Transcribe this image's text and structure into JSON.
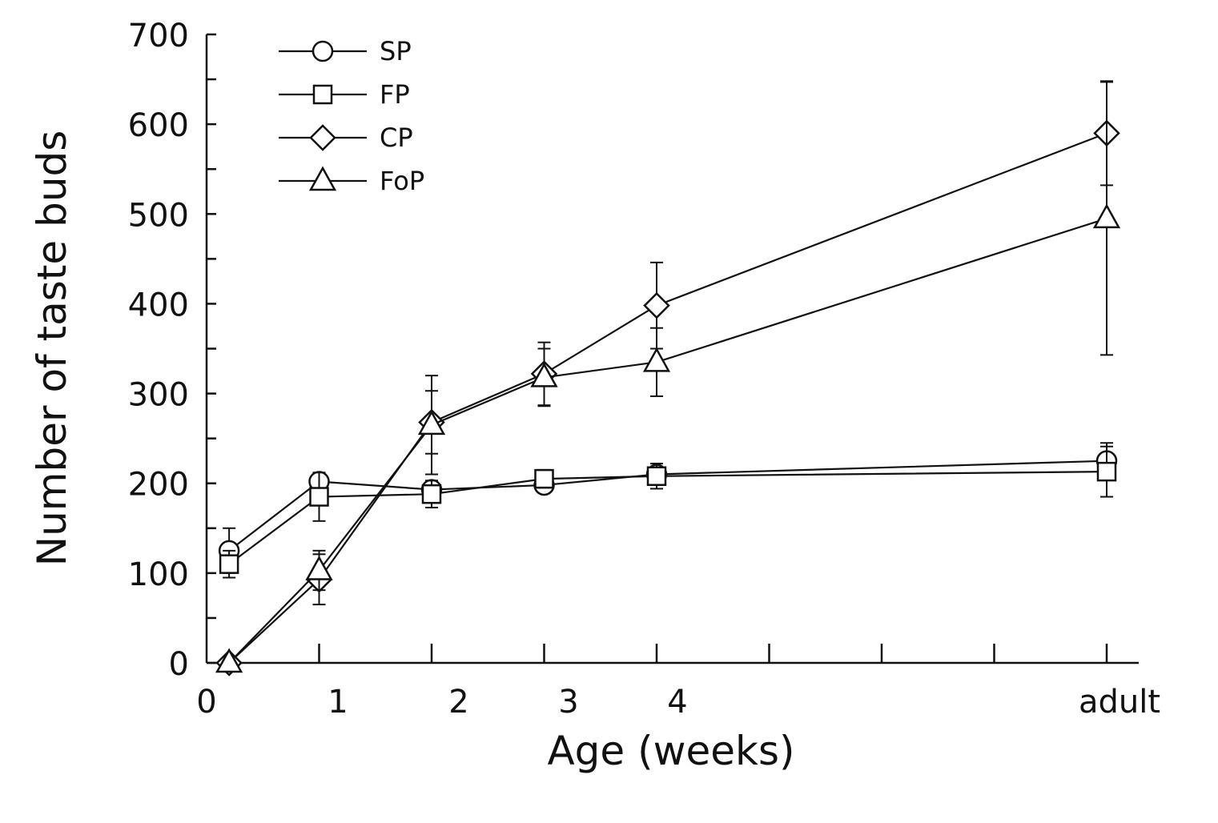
{
  "chart_data": {
    "type": "line",
    "title": "",
    "xlabel": "Age (weeks)",
    "ylabel": "Number of taste buds",
    "ylim": [
      0,
      700
    ],
    "yticks": [
      0,
      100,
      200,
      300,
      400,
      500,
      600,
      700
    ],
    "xticks": [
      {
        "value": 0,
        "label": "0"
      },
      {
        "value": 1,
        "label": "1"
      },
      {
        "value": 2,
        "label": "2"
      },
      {
        "value": 3,
        "label": "3"
      },
      {
        "value": 4,
        "label": "4"
      },
      {
        "value": 8,
        "label": "adult"
      }
    ],
    "legend_position": "top-left",
    "series": [
      {
        "name": "SP",
        "marker": "circle",
        "x": [
          0.2,
          1,
          2,
          3,
          4,
          8
        ],
        "values": [
          125,
          202,
          193,
          198,
          210,
          225
        ],
        "errors": [
          25,
          0,
          10,
          0,
          12,
          20
        ]
      },
      {
        "name": "FP",
        "marker": "square",
        "x": [
          0.2,
          1,
          2,
          3,
          4,
          8
        ],
        "values": [
          110,
          185,
          188,
          205,
          208,
          213
        ],
        "errors": [
          15,
          27,
          15,
          10,
          14,
          28
        ]
      },
      {
        "name": "CP",
        "marker": "diamond",
        "x": [
          0.2,
          1,
          2,
          3,
          4,
          8
        ],
        "values": [
          0,
          93,
          268,
          322,
          398,
          590
        ],
        "errors": [
          0,
          28,
          35,
          35,
          48,
          58
        ]
      },
      {
        "name": "FoP",
        "marker": "triangle",
        "x": [
          0.2,
          1,
          2,
          3,
          4,
          8
        ],
        "values": [
          0,
          103,
          265,
          318,
          335,
          495
        ],
        "errors": [
          0,
          22,
          55,
          32,
          38,
          152
        ]
      }
    ]
  }
}
